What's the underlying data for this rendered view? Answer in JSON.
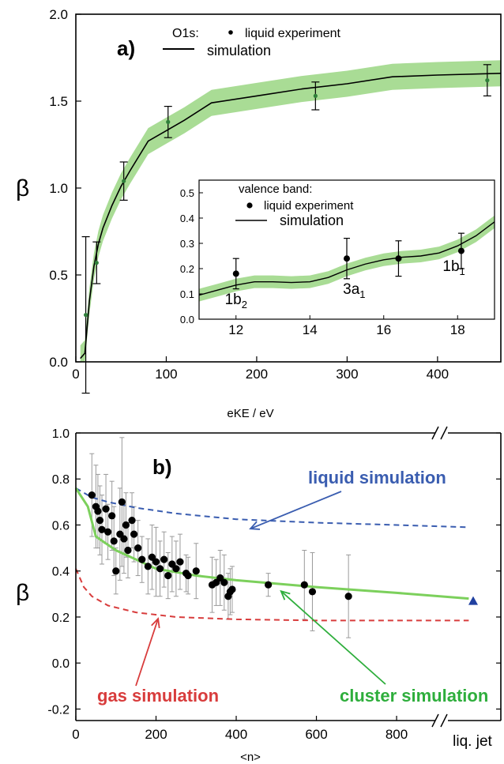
{
  "chart_data": [
    {
      "panel": "a",
      "type": "line",
      "label": "a)",
      "legend_header": "O1s:",
      "legend": [
        "liquid experiment",
        "simulation"
      ],
      "legend_placement": "top-left",
      "xlabel": "eKE / eV",
      "ylabel": "β",
      "xlim": [
        0,
        470
      ],
      "ylim": [
        0,
        2.0
      ],
      "xticks": [
        0,
        100,
        200,
        300,
        400
      ],
      "yticks": [
        0.0,
        0.5,
        1.0,
        1.5,
        2.0
      ],
      "yticks_labels": [
        "0.0",
        "0.5",
        "1.0",
        "1.5",
        "2.0"
      ],
      "series": [
        {
          "name": "liquid experiment",
          "style": "points",
          "x": [
            11,
            23,
            53,
            102,
            265,
            455
          ],
          "y": [
            0.27,
            0.57,
            1.04,
            1.38,
            1.53,
            1.62
          ],
          "err": [
            0.45,
            0.12,
            0.11,
            0.09,
            0.08,
            0.09
          ]
        },
        {
          "name": "simulation",
          "style": "line",
          "x": [
            5,
            10,
            15,
            20,
            25,
            30,
            40,
            50,
            60,
            80,
            100,
            120,
            150,
            200,
            250,
            300,
            350,
            400,
            470
          ],
          "y": [
            0.02,
            0.05,
            0.35,
            0.55,
            0.68,
            0.77,
            0.9,
            1.01,
            1.1,
            1.27,
            1.33,
            1.39,
            1.49,
            1.53,
            1.57,
            1.6,
            1.64,
            1.65,
            1.66
          ],
          "band_width": 0.075
        }
      ],
      "inset": {
        "type": "line",
        "legend_header": "valence band:",
        "legend": [
          "liquid experiment",
          "simulation"
        ],
        "xlim": [
          11,
          19
        ],
        "ylim": [
          0,
          0.55
        ],
        "xticks": [
          12,
          14,
          16,
          18
        ],
        "yticks": [
          0.0,
          0.1,
          0.2,
          0.3,
          0.4,
          0.5
        ],
        "yticks_labels": [
          "0.0",
          "0.1",
          "0.2",
          "0.3",
          "0.4",
          "0.5"
        ],
        "orbital_labels": [
          {
            "base": "1b",
            "sub": "2",
            "x": 12.0,
            "y": 0.06
          },
          {
            "base": "3a",
            "sub": "1",
            "x": 15.2,
            "y": 0.1
          },
          {
            "base": "1b",
            "sub": "1",
            "x": 17.9,
            "y": 0.19
          }
        ],
        "series": [
          {
            "name": "liquid experiment",
            "style": "points",
            "x": [
              12.0,
              15.0,
              16.4,
              18.1
            ],
            "y": [
              0.18,
              0.24,
              0.24,
              0.27
            ],
            "err": [
              0.06,
              0.08,
              0.07,
              0.07
            ]
          },
          {
            "name": "simulation",
            "style": "line",
            "x": [
              11.0,
              11.5,
              12.0,
              12.5,
              13.0,
              13.5,
              14.0,
              14.5,
              15.0,
              15.5,
              16.0,
              16.5,
              17.0,
              17.5,
              18.0,
              18.5,
              19.0
            ],
            "y": [
              0.095,
              0.115,
              0.135,
              0.148,
              0.148,
              0.145,
              0.148,
              0.165,
              0.195,
              0.218,
              0.235,
              0.245,
              0.25,
              0.262,
              0.29,
              0.33,
              0.385
            ],
            "band_width": 0.025
          }
        ]
      }
    },
    {
      "panel": "b",
      "type": "scatter",
      "label": "b)",
      "xlabel": "<n>",
      "ylabel": "β",
      "xlim": [
        0,
        1060
      ],
      "ylim": [
        -0.25,
        1.0
      ],
      "xticks": [
        0,
        200,
        400,
        600,
        800
      ],
      "yticks": [
        -0.2,
        0.0,
        0.2,
        0.4,
        0.6,
        0.8,
        1.0
      ],
      "yticks_labels": [
        "-0.2",
        "0.0",
        "0.2",
        "0.4",
        "0.6",
        "0.8",
        "1.0"
      ],
      "break_label": "liq. jet",
      "annotations": {
        "liquid": "liquid simulation",
        "gas": "gas simulation",
        "cluster": "cluster simulation"
      },
      "colors": {
        "liquid": "#3a5db0",
        "gas": "#d83c3c",
        "cluster": "#2eae3c",
        "cluster_line": "#7cd05c",
        "triangle": "#2040a0"
      },
      "liquid_jet_value": 0.27,
      "series": [
        {
          "name": "liquid simulation",
          "style": "dashed",
          "x": [
            0,
            20,
            40,
            80,
            150,
            250,
            400,
            600,
            800,
            980
          ],
          "y": [
            0.76,
            0.74,
            0.72,
            0.7,
            0.675,
            0.65,
            0.625,
            0.61,
            0.6,
            0.59
          ]
        },
        {
          "name": "gas simulation",
          "style": "dashed",
          "x": [
            0,
            20,
            40,
            80,
            150,
            250,
            400,
            600,
            800,
            980
          ],
          "y": [
            0.41,
            0.33,
            0.29,
            0.25,
            0.22,
            0.2,
            0.19,
            0.185,
            0.185,
            0.185
          ]
        },
        {
          "name": "cluster simulation",
          "style": "line",
          "x": [
            0,
            30,
            50,
            100,
            150,
            200,
            300,
            400,
            600,
            800,
            980
          ],
          "y": [
            0.76,
            0.68,
            0.55,
            0.49,
            0.45,
            0.41,
            0.38,
            0.36,
            0.33,
            0.305,
            0.28
          ]
        },
        {
          "name": "experiment",
          "style": "points",
          "x": [
            40,
            50,
            55,
            60,
            65,
            75,
            80,
            90,
            95,
            100,
            110,
            115,
            120,
            125,
            130,
            140,
            145,
            155,
            165,
            180,
            190,
            200,
            210,
            220,
            230,
            240,
            250,
            260,
            275,
            280,
            300,
            340,
            350,
            360,
            370,
            380,
            385,
            390,
            480,
            570,
            590,
            680
          ],
          "y": [
            0.73,
            0.68,
            0.66,
            0.62,
            0.58,
            0.67,
            0.57,
            0.64,
            0.53,
            0.4,
            0.56,
            0.7,
            0.54,
            0.6,
            0.49,
            0.62,
            0.56,
            0.5,
            0.45,
            0.42,
            0.46,
            0.44,
            0.41,
            0.45,
            0.38,
            0.43,
            0.41,
            0.44,
            0.39,
            0.38,
            0.4,
            0.34,
            0.35,
            0.37,
            0.35,
            0.29,
            0.31,
            0.32,
            0.34,
            0.34,
            0.31,
            0.29
          ],
          "err": [
            0.18,
            0.18,
            0.16,
            0.15,
            0.15,
            0.15,
            0.12,
            0.15,
            0.15,
            0.1,
            0.2,
            0.28,
            0.15,
            0.14,
            0.12,
            0.12,
            0.12,
            0.12,
            0.1,
            0.12,
            0.14,
            0.15,
            0.12,
            0.12,
            0.1,
            0.12,
            0.12,
            0.12,
            0.08,
            0.08,
            0.12,
            0.12,
            0.1,
            0.12,
            0.12,
            0.1,
            0.1,
            0.1,
            0.05,
            0.15,
            0.17,
            0.18
          ]
        }
      ]
    }
  ]
}
